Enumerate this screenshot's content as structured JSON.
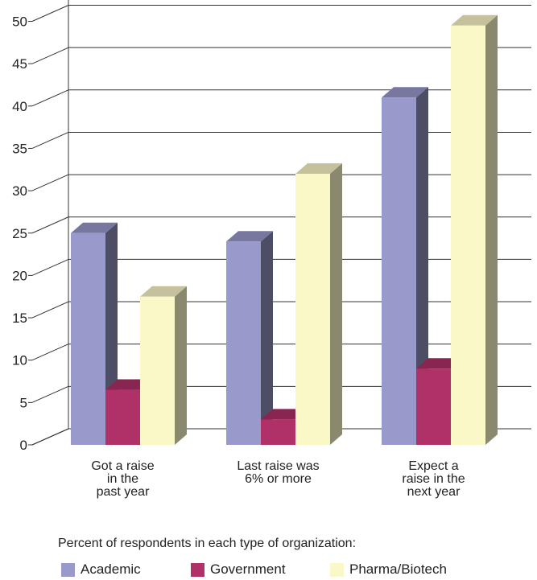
{
  "chart_data": {
    "type": "bar",
    "categories": [
      "Got a raise\nin the\npast year",
      "Last raise was\n6% or more",
      "Expect a\nraise in the\nnext year"
    ],
    "series": [
      {
        "name": "Academic",
        "values": [
          25,
          24,
          41
        ],
        "color": "#9999cc"
      },
      {
        "name": "Government",
        "values": [
          6.5,
          3,
          9
        ],
        "color": "#b03068"
      },
      {
        "name": "Pharma/Biotech",
        "values": [
          17.5,
          32,
          49.5
        ],
        "color": "#fbf8c8"
      }
    ],
    "yticks": [
      0,
      5,
      10,
      15,
      20,
      25,
      30,
      35,
      40,
      45,
      50
    ],
    "ylim": [
      0,
      55
    ],
    "grid": true,
    "legend_title": "Percent of respondents in each type of organization:",
    "legend_position": "bottom"
  }
}
